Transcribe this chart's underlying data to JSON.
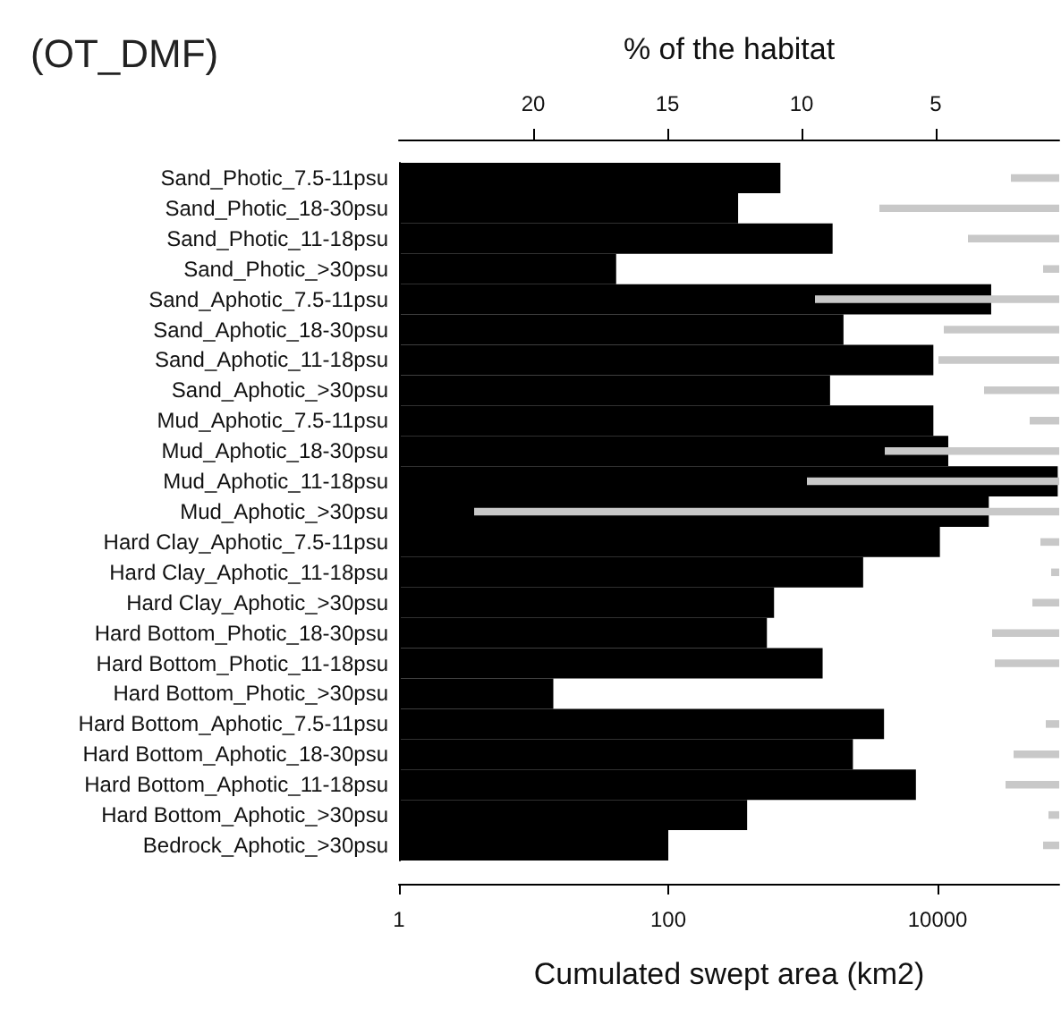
{
  "chart_data": {
    "type": "bar",
    "orientation": "horizontal",
    "title": "(OT_DMF)",
    "xlabel": "Cumulated swept area (km2)",
    "x2label": "% of the habitat",
    "log": "x",
    "categories": [
      "Sand_Photic_7.5-11psu",
      "Sand_Photic_18-30psu",
      "Sand_Photic_11-18psu",
      "Sand_Photic_>30psu",
      "Sand_Aphotic_7.5-11psu",
      "Sand_Aphotic_18-30psu",
      "Sand_Aphotic_11-18psu",
      "Sand_Aphotic_>30psu",
      "Mud_Aphotic_7.5-11psu",
      "Mud_Aphotic_18-30psu",
      "Mud_Aphotic_11-18psu",
      "Mud_Aphotic_>30psu",
      "Hard Clay_Aphotic_7.5-11psu",
      "Hard Clay_Aphotic_11-18psu",
      "Hard Clay_Aphotic_>30psu",
      "Hard Bottom_Photic_18-30psu",
      "Hard Bottom_Photic_11-18psu",
      "Hard Bottom_Photic_>30psu",
      "Hard Bottom_Aphotic_7.5-11psu",
      "Hard Bottom_Aphotic_18-30psu",
      "Hard Bottom_Aphotic_11-18psu",
      "Hard Bottom_Aphotic_>30psu",
      "Bedrock_Aphotic_>30psu"
    ],
    "xlim": [
      1,
      80000
    ],
    "xticks": [
      1,
      100,
      10000
    ],
    "x2lim": [
      25,
      0.4
    ],
    "x2ticks": [
      20,
      15,
      10,
      5
    ],
    "series": [
      {
        "color": "#000000",
        "values": [
          680,
          330,
          1660,
          41,
          25000,
          2000,
          9300,
          1590,
          9300,
          12000,
          78000,
          24000,
          10400,
          2800,
          610,
          540,
          1400,
          14,
          4000,
          2350,
          6900,
          385,
          100
        ]
      },
      {
        "color": "#c8c8c8",
        "axis": "x2",
        "base": [
          0.4,
          0.4,
          0.4,
          0.4,
          0.4,
          0.4,
          0.4,
          0.4,
          0.4,
          0.4,
          0.4,
          0.4,
          0.4,
          0.4,
          0.4,
          0.4,
          0.4,
          null,
          0.4,
          0.4,
          0.4,
          0.4,
          0.4
        ],
        "values": [
          1.8,
          6.7,
          3.4,
          0.6,
          9.1,
          4.3,
          4.5,
          2.8,
          1.1,
          6.5,
          9.4,
          21.8,
          0.7,
          0.3,
          1.0,
          2.5,
          2.4,
          null,
          0.5,
          1.7,
          2.0,
          0.4,
          0.6
        ]
      }
    ]
  }
}
